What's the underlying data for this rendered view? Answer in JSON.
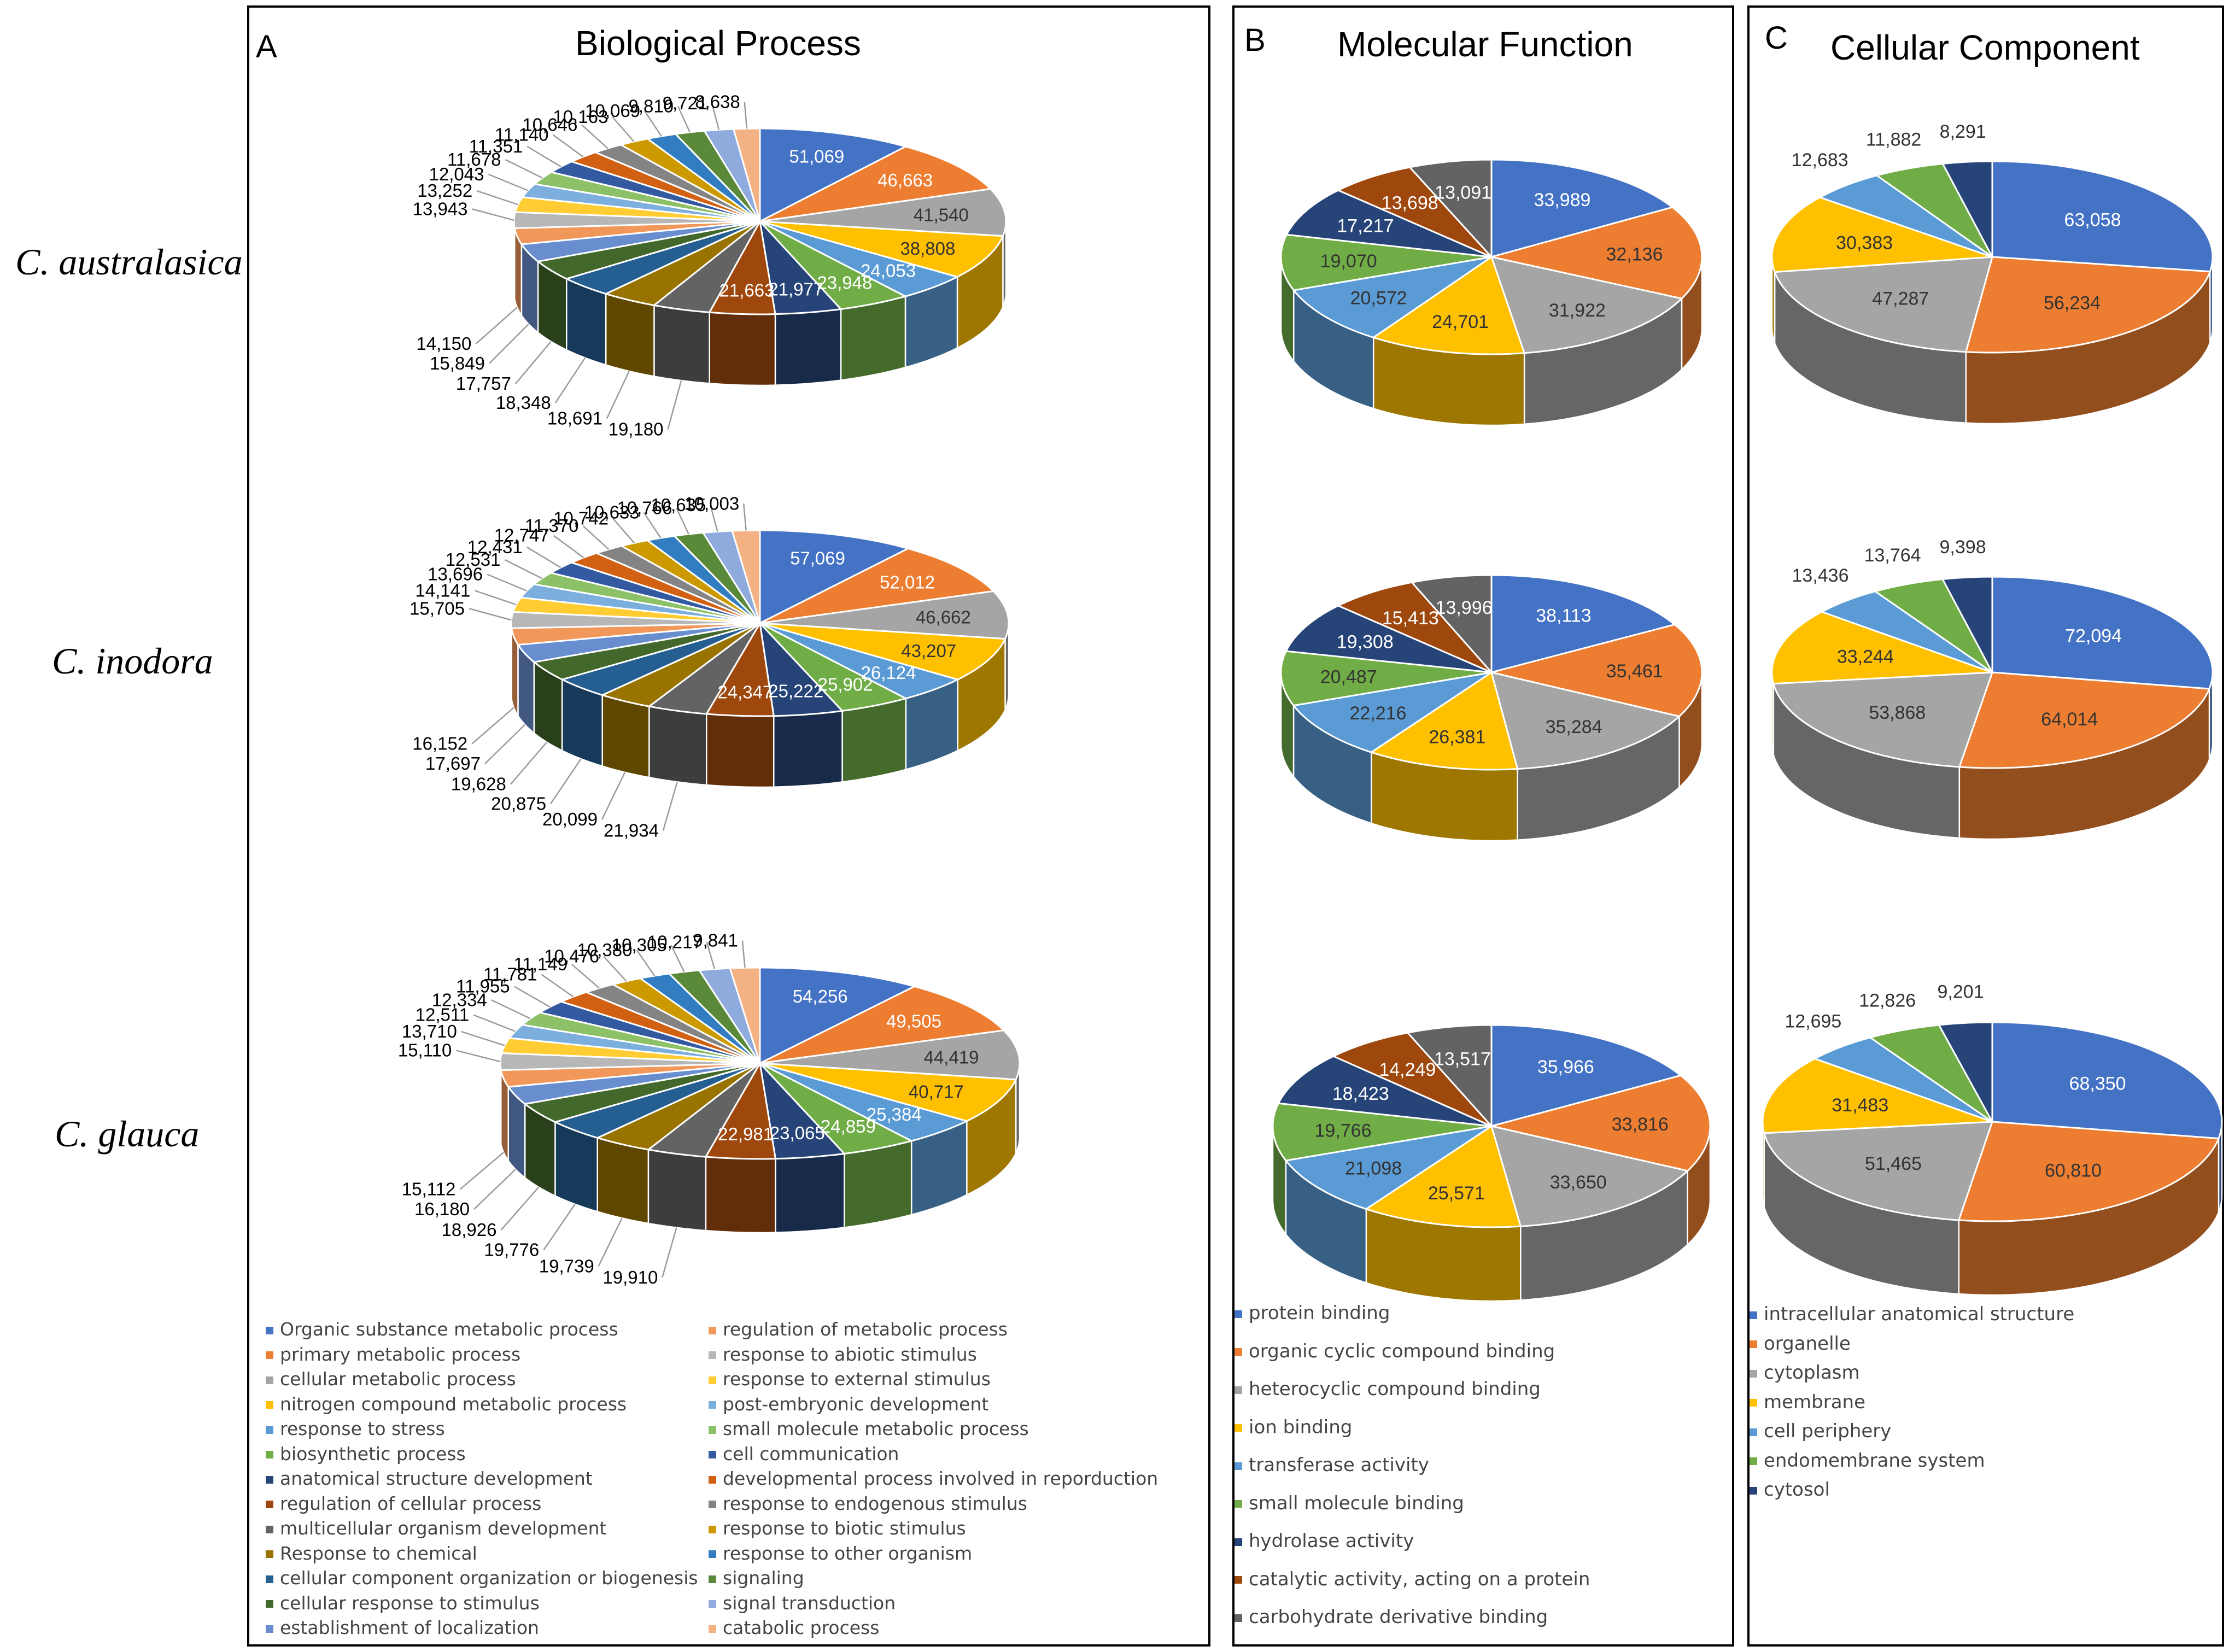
{
  "species": [
    "C. australasica",
    "C. inodora",
    "C. glauca"
  ],
  "chart_data": [
    {
      "panel": "A",
      "title": "Biological Process",
      "type": "pie",
      "categories": [
        "Organic substance metabolic process",
        "primary metabolic process",
        "cellular metabolic process",
        "nitrogen compound metabolic process",
        "response to stress",
        "biosynthetic process",
        "anatomical structure development",
        "regulation of cellular process",
        "multicellular organism development",
        "Response to chemical",
        "cellular component organization or biogenesis",
        "cellular response to stimulus",
        "establishment of localization",
        "regulation of metabolic process",
        "response to abiotic stimulus",
        "response to external stimulus",
        "post-embryonic development",
        "small molecule metabolic process",
        "cell communication",
        "developmental process involved in reporduction",
        "response to endogenous stimulus",
        "response to biotic stimulus",
        "response to other organism",
        "signaling",
        "signal transduction",
        "catabolic process"
      ],
      "colors": [
        "#4472C4",
        "#ED7D31",
        "#A5A5A5",
        "#FFC000",
        "#5B9BD5",
        "#70AD47",
        "#264478",
        "#9E480E",
        "#636363",
        "#997300",
        "#255E91",
        "#43682B",
        "#698ED0",
        "#F1975A",
        "#B7B7B7",
        "#FFCD33",
        "#7CAFDD",
        "#8CC168",
        "#335AA1",
        "#D26012",
        "#848484",
        "#CC9A00",
        "#327DC2",
        "#5A8A39",
        "#8FAADC",
        "#F4B183"
      ],
      "series": [
        {
          "name": "C. australasica",
          "values": [
            51069,
            46663,
            41540,
            38808,
            24053,
            23948,
            21977,
            21663,
            19180,
            18691,
            18348,
            17757,
            15849,
            14150,
            13943,
            13252,
            12043,
            11678,
            11351,
            11140,
            10646,
            10163,
            10069,
            9810,
            9721,
            8638
          ],
          "labels": [
            "51,069",
            "46,663",
            "41,540",
            "38,808",
            "24,053",
            "23,948",
            "21,977",
            "21,663",
            "19,180",
            "18,691",
            "18,348",
            "17,757",
            "15,849",
            "14,150",
            "13,943",
            "13,252",
            "12,043",
            "11,678",
            "11,351",
            "11,140",
            "10,646",
            "10,163",
            "10,069",
            "9,810",
            "9,721",
            "8,638"
          ]
        },
        {
          "name": "C. inodora",
          "values": [
            57069,
            52012,
            46662,
            43207,
            26124,
            25902,
            25222,
            24347,
            21934,
            20099,
            20875,
            19628,
            17697,
            16152,
            15705,
            14141,
            13696,
            12531,
            12431,
            12747,
            11370,
            10742,
            10633,
            10766,
            10635,
            10003
          ],
          "labels": [
            "57,069",
            "52,012",
            "46,662",
            "43,207",
            "26,124",
            "25,902",
            "25,222",
            "24,347",
            "21,934",
            "20,099",
            "20,875",
            "19,628",
            "17,697",
            "16,152",
            "15,705",
            "14,141",
            "13,696",
            "12,531",
            "12,431",
            "12,747",
            "11,370",
            "10,742",
            "10,633",
            "10,766",
            "10,635",
            "10,003"
          ]
        },
        {
          "name": "C. glauca",
          "values": [
            54256,
            49505,
            44419,
            40717,
            25384,
            24859,
            23065,
            22981,
            19910,
            19739,
            19776,
            18926,
            16180,
            15112,
            15110,
            13710,
            12511,
            12334,
            11955,
            11781,
            11149,
            10476,
            10380,
            10305,
            10217,
            9841
          ],
          "labels": [
            "54,256",
            "49,505",
            "44,419",
            "40,717",
            "25,384",
            "24,859",
            "23,065",
            "22,981",
            "19,910",
            "19,739",
            "19,776",
            "18,926",
            "16,180",
            "15,112",
            "15,110",
            "13,710",
            "12,511",
            "12,334",
            "11,955",
            "11,781",
            "11,149",
            "10,476",
            "10,380",
            "10,305",
            "10,217",
            "9,841"
          ]
        }
      ]
    },
    {
      "panel": "B",
      "title": "Molecular Function",
      "type": "pie",
      "categories": [
        "protein binding",
        "organic cyclic compound binding",
        "heterocyclic compound binding",
        "ion binding",
        "transferase activity",
        "small molecule binding",
        "hydrolase activity",
        "catalytic activity, acting on a protein",
        "carbohydrate derivative binding"
      ],
      "colors": [
        "#4472C4",
        "#ED7D31",
        "#A5A5A5",
        "#FFC000",
        "#5B9BD5",
        "#70AD47",
        "#264478",
        "#9E480E",
        "#636363"
      ],
      "series": [
        {
          "name": "C. australasica",
          "values": [
            33989,
            32136,
            31922,
            24701,
            20572,
            19070,
            17217,
            13698,
            13091
          ],
          "labels": [
            "33,989",
            "32,136",
            "31,922",
            "24,701",
            "20,572",
            "19,070",
            "17,217",
            "13,698",
            "13,091"
          ]
        },
        {
          "name": "C. inodora",
          "values": [
            38113,
            35461,
            35284,
            26381,
            22216,
            20487,
            19308,
            15413,
            13996
          ],
          "labels": [
            "38,113",
            "35,461",
            "35,284",
            "26,381",
            "22,216",
            "20,487",
            "19,308",
            "15,413",
            "13,996"
          ]
        },
        {
          "name": "C. glauca",
          "values": [
            35966,
            33816,
            33650,
            25571,
            21098,
            19766,
            18423,
            14249,
            13517
          ],
          "labels": [
            "35,966",
            "33,816",
            "33,650",
            "25,571",
            "21,098",
            "19,766",
            "18,423",
            "14,249",
            "13,517"
          ]
        }
      ]
    },
    {
      "panel": "C",
      "title": "Cellular Component",
      "type": "pie",
      "categories": [
        "intracellular anatomical structure",
        "organelle",
        "cytoplasm",
        "membrane",
        "cell periphery",
        "endomembrane system",
        "cytosol"
      ],
      "colors": [
        "#4472C4",
        "#ED7D31",
        "#A5A5A5",
        "#FFC000",
        "#5B9BD5",
        "#70AD47",
        "#264478"
      ],
      "series": [
        {
          "name": "C. australasica",
          "values": [
            63058,
            56234,
            47287,
            30383,
            12683,
            11882,
            8291
          ],
          "labels": [
            "63,058",
            "56,234",
            "47,287",
            "30,383",
            "12,683",
            "11,882",
            "8,291"
          ]
        },
        {
          "name": "C. inodora",
          "values": [
            72094,
            64014,
            53868,
            33244,
            13436,
            13764,
            9398
          ],
          "labels": [
            "72,094",
            "64,014",
            "53,868",
            "33,244",
            "13,436",
            "13,764",
            "9,398"
          ]
        },
        {
          "name": "C. glauca",
          "values": [
            68350,
            60810,
            51465,
            31483,
            12695,
            12826,
            9201
          ],
          "labels": [
            "68,350",
            "60,810",
            "51,465",
            "31,483",
            "12,695",
            "12,826",
            "9,201"
          ]
        }
      ]
    }
  ]
}
